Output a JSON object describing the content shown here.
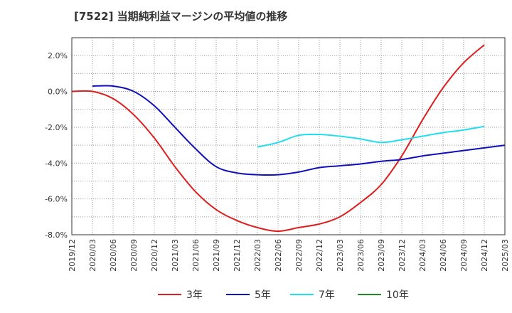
{
  "chart_data": {
    "type": "line",
    "title": "[7522]  当期純利益マージンの平均値の推移",
    "xlabel": "",
    "ylabel": "",
    "ylim": [
      -8.0,
      3.0
    ],
    "yticks": [
      2.0,
      0.0,
      -2.0,
      -4.0,
      -6.0,
      -8.0
    ],
    "ytick_labels": [
      "2.0%",
      "0.0%",
      "-2.0%",
      "-4.0%",
      "-6.0%",
      "-8.0%"
    ],
    "x_labels": [
      "2019/12",
      "2020/03",
      "2020/06",
      "2020/09",
      "2020/12",
      "2021/03",
      "2021/06",
      "2021/09",
      "2021/12",
      "2022/03",
      "2022/06",
      "2022/09",
      "2022/12",
      "2023/03",
      "2023/06",
      "2023/09",
      "2023/12",
      "2024/03",
      "2024/06",
      "2024/09",
      "2024/12",
      "2025/03"
    ],
    "grid": true,
    "legend_position": "bottom",
    "series": [
      {
        "name": "3年",
        "color": "#dd1e1e",
        "start_index": 0,
        "values": [
          0.0,
          0.0,
          -0.4,
          -1.3,
          -2.6,
          -4.2,
          -5.6,
          -6.6,
          -7.2,
          -7.6,
          -7.8,
          -7.6,
          -7.4,
          -7.0,
          -6.2,
          -5.2,
          -3.6,
          -1.6,
          0.2,
          1.6,
          2.6
        ]
      },
      {
        "name": "5年",
        "color": "#1010bb",
        "start_index": 1,
        "values": [
          0.3,
          0.3,
          0.0,
          -0.8,
          -2.0,
          -3.2,
          -4.2,
          -4.55,
          -4.65,
          -4.65,
          -4.5,
          -4.25,
          -4.15,
          -4.05,
          -3.9,
          -3.8,
          -3.6,
          -3.45,
          -3.3,
          -3.15,
          -3.0
        ]
      },
      {
        "name": "7年",
        "color": "#22ddee",
        "start_index": 9,
        "values": [
          -3.1,
          -2.85,
          -2.45,
          -2.4,
          -2.5,
          -2.65,
          -2.85,
          -2.7,
          -2.5,
          -2.3,
          -2.15,
          -1.95
        ]
      },
      {
        "name": "10年",
        "color": "#1e8a1e",
        "start_index": 0,
        "values": []
      }
    ]
  }
}
